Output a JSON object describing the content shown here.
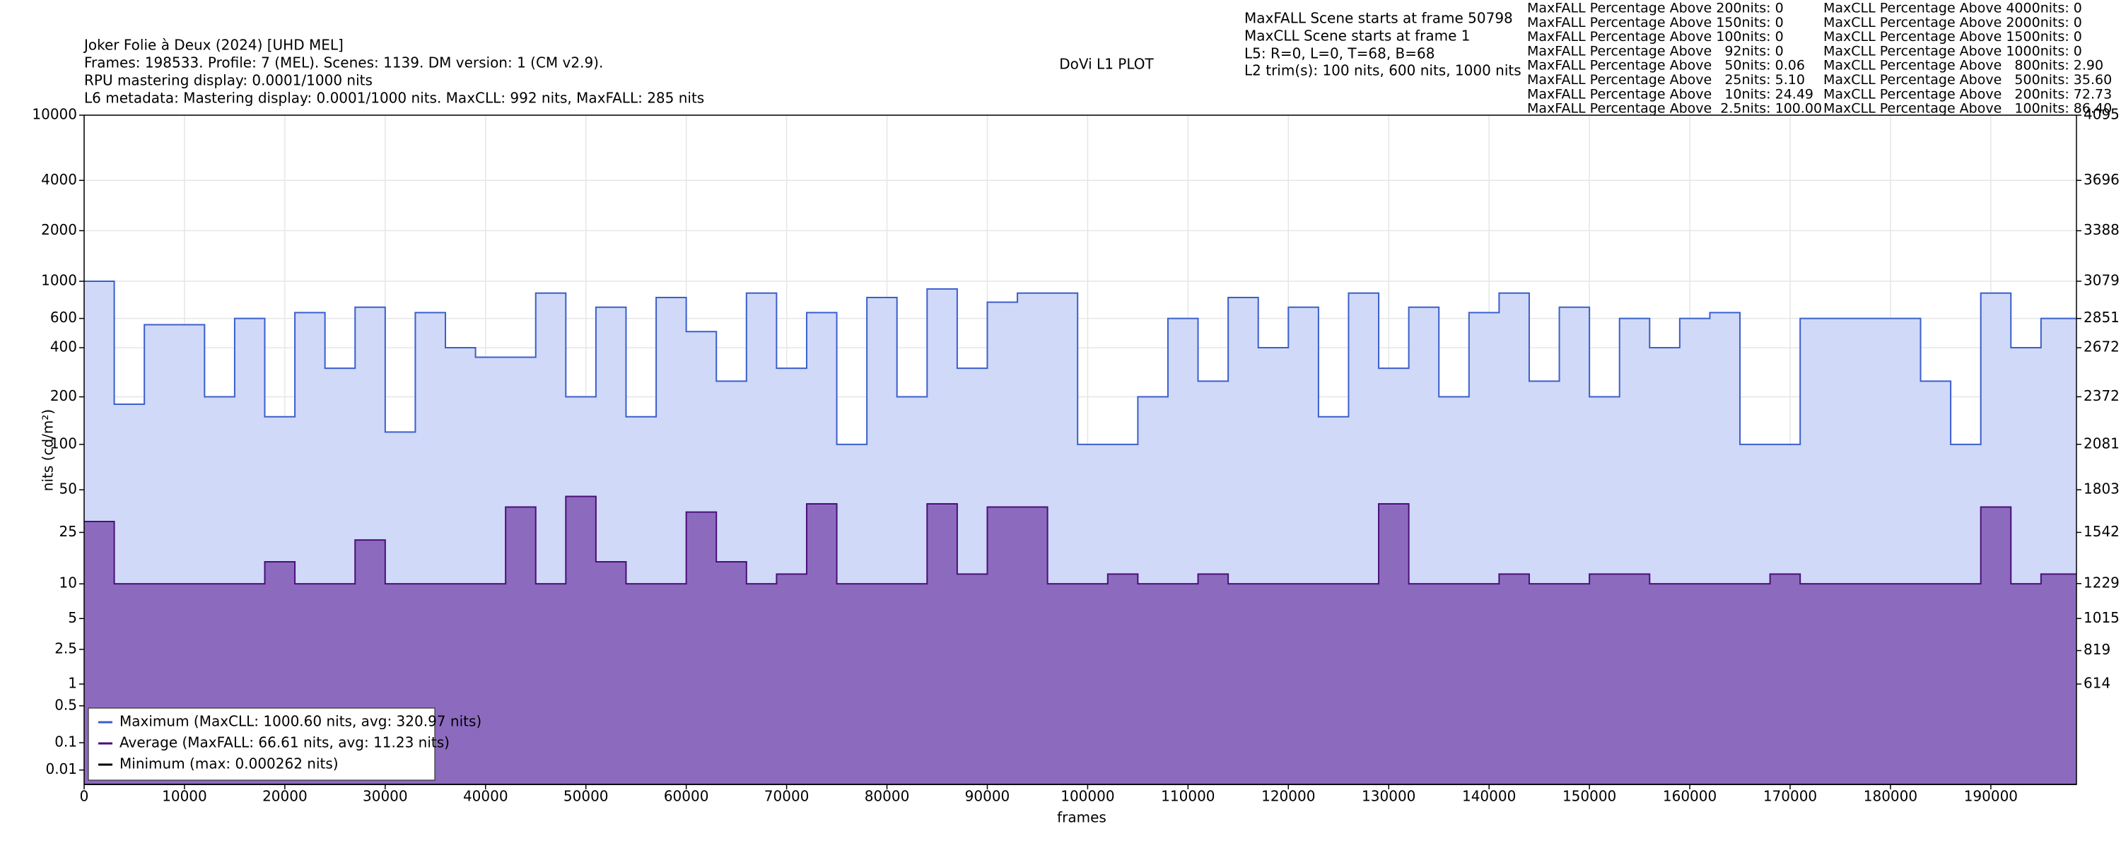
{
  "header": [
    "Joker Folie à Deux (2024) [UHD MEL]",
    "Frames: 198533. Profile: 7 (MEL). Scenes: 1139. DM version: 1 (CM v2.9).",
    "RPU mastering display: 0.0001/1000 nits",
    "L6 metadata: Mastering display: 0.0001/1000 nits. MaxCLL: 992 nits, MaxFALL: 285 nits"
  ],
  "plot_title": "DoVi L1 PLOT",
  "info": [
    "MaxFALL Scene starts at frame 50798",
    "MaxCLL Scene starts at frame 1",
    "L5: R=0, L=0, T=68, B=68",
    "L2 trim(s): 100 nits, 600 nits, 1000 nits"
  ],
  "maxfall_stats": [
    "MaxFALL Percentage Above 200nits: 0",
    "MaxFALL Percentage Above 150nits: 0",
    "MaxFALL Percentage Above 100nits: 0",
    "MaxFALL Percentage Above   92nits: 0",
    "MaxFALL Percentage Above   50nits: 0.06",
    "MaxFALL Percentage Above   25nits: 5.10",
    "MaxFALL Percentage Above   10nits: 24.49",
    "MaxFALL Percentage Above  2.5nits: 100.00"
  ],
  "maxcll_stats": [
    "MaxCLL Percentage Above 4000nits: 0",
    "MaxCLL Percentage Above 2000nits: 0",
    "MaxCLL Percentage Above 1500nits: 0",
    "MaxCLL Percentage Above 1000nits: 0",
    "MaxCLL Percentage Above   800nits: 2.90",
    "MaxCLL Percentage Above   500nits: 35.60",
    "MaxCLL Percentage Above   200nits: 72.73",
    "MaxCLL Percentage Above   100nits: 86.40"
  ],
  "chart_data": {
    "type": "line",
    "step": true,
    "yscale": "pq",
    "xlabel": "frames",
    "ylabel": "nits (cd/m²)",
    "xlim": [
      0,
      198533
    ],
    "ylim": [
      0,
      10000
    ],
    "y2lim": [
      0,
      4095
    ],
    "xticks": [
      0,
      10000,
      20000,
      30000,
      40000,
      50000,
      60000,
      70000,
      80000,
      90000,
      100000,
      110000,
      120000,
      130000,
      140000,
      150000,
      160000,
      170000,
      180000,
      190000
    ],
    "yticks": [
      0.01,
      0.1,
      0.5,
      1,
      2.5,
      5,
      10,
      25,
      50,
      100,
      200,
      400,
      600,
      1000,
      2000,
      4000,
      10000
    ],
    "y2ticks": [
      614,
      819,
      1015,
      1229,
      1542,
      1803,
      2081,
      2372,
      2672,
      2851,
      3079,
      3388,
      3696,
      4095
    ],
    "grid": true,
    "legend": "lower left",
    "x": [
      0,
      3000,
      6000,
      9000,
      12000,
      15000,
      18000,
      21000,
      24000,
      27000,
      30000,
      33000,
      36000,
      39000,
      42000,
      45000,
      48000,
      51000,
      54000,
      57000,
      60000,
      63000,
      66000,
      69000,
      72000,
      75000,
      78000,
      81000,
      84000,
      87000,
      90000,
      93000,
      96000,
      99000,
      102000,
      105000,
      108000,
      111000,
      114000,
      117000,
      120000,
      123000,
      126000,
      129000,
      132000,
      135000,
      138000,
      141000,
      144000,
      147000,
      150000,
      153000,
      156000,
      159000,
      162000,
      165000,
      168000,
      171000,
      174000,
      177000,
      180000,
      183000,
      186000,
      189000,
      192000,
      195000,
      198000
    ],
    "series": [
      {
        "name": "Maximum (MaxCLL: 1000.60 nits, avg: 320.97 nits)",
        "color": "#3a5fcd",
        "fill": "#d0d9f7",
        "values": [
          1000,
          180,
          550,
          550,
          200,
          600,
          150,
          650,
          300,
          700,
          120,
          650,
          400,
          350,
          350,
          850,
          200,
          700,
          150,
          800,
          500,
          250,
          850,
          300,
          650,
          100,
          800,
          200,
          900,
          300,
          750,
          850,
          850,
          100,
          100,
          200,
          600,
          250,
          800,
          400,
          700,
          150,
          850,
          300,
          700,
          200,
          650,
          850,
          250,
          700,
          200,
          600,
          400,
          600,
          650,
          100,
          100,
          600,
          600,
          600,
          600,
          250,
          100,
          850,
          400,
          600,
          600
        ]
      },
      {
        "name": "Average (MaxFALL: 66.61 nits, avg: 11.23 nits)",
        "color": "#4b0f7a",
        "fill": "#8c6bbf",
        "values": [
          30,
          10,
          10,
          10,
          10,
          10,
          15,
          10,
          10,
          22,
          10,
          10,
          10,
          10,
          38,
          10,
          45,
          15,
          10,
          10,
          35,
          15,
          10,
          12,
          40,
          10,
          10,
          10,
          40,
          12,
          38,
          38,
          10,
          10,
          12,
          10,
          10,
          12,
          10,
          10,
          10,
          10,
          10,
          40,
          10,
          10,
          10,
          12,
          10,
          10,
          12,
          12,
          10,
          10,
          10,
          10,
          12,
          10,
          10,
          10,
          10,
          10,
          10,
          38,
          10,
          12,
          12
        ]
      },
      {
        "name": "Minimum (max: 0.000262 nits)",
        "color": "#000000",
        "values": [
          0,
          0,
          0,
          0,
          0,
          0,
          0,
          0,
          0,
          0,
          0,
          0,
          0,
          0,
          0,
          0,
          0,
          0,
          0,
          0,
          0,
          0,
          0,
          0,
          0,
          0,
          0,
          0,
          0,
          0,
          0,
          0,
          0,
          0,
          0,
          0,
          0,
          0,
          0,
          0,
          0,
          0,
          0,
          0,
          0,
          0,
          0,
          0,
          0,
          0,
          0,
          0,
          0,
          0,
          0,
          0,
          0,
          0,
          0,
          0,
          0,
          0,
          0,
          0,
          0,
          0,
          0
        ]
      }
    ]
  }
}
